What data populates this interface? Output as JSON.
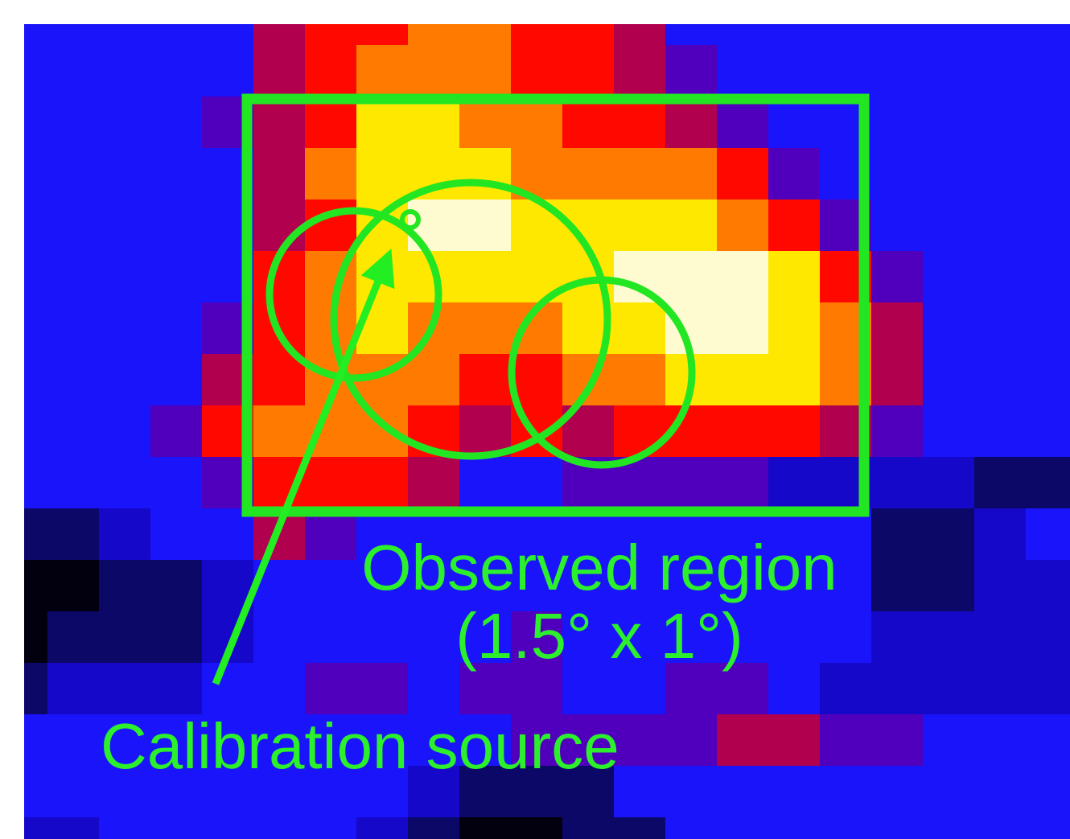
{
  "annotations": {
    "region_label": "Observed region",
    "region_size": "(1.5° x 1°)",
    "source_label": "Calibration source"
  }
}
